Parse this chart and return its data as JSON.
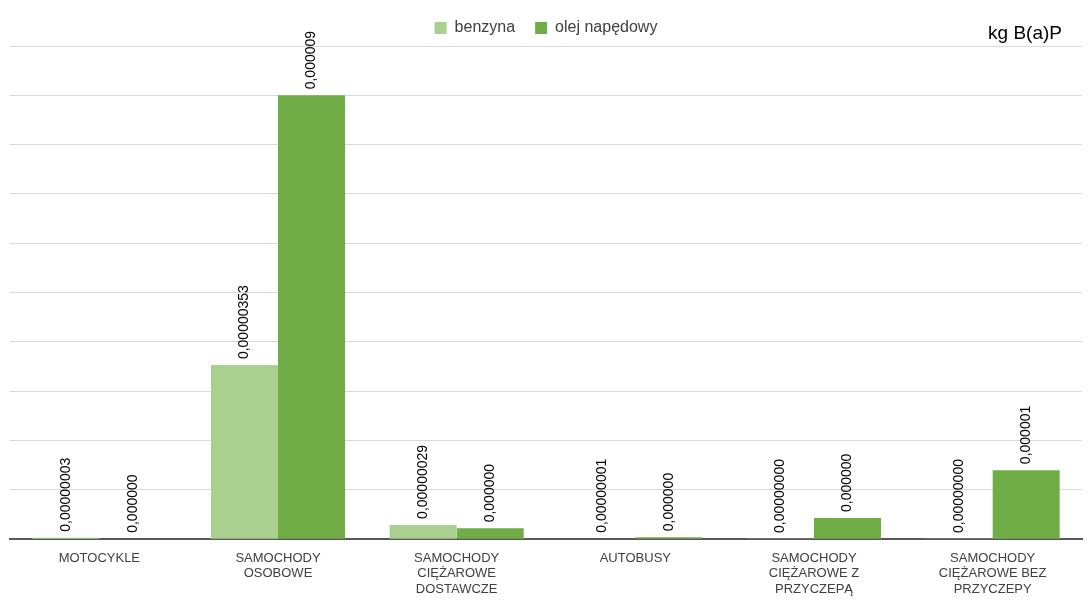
{
  "chart_data": {
    "type": "bar",
    "categories": [
      "MOTOCYKLE",
      "SAMOCHODY OSOBOWE",
      "SAMOCHODY CIĘŻAROWE DOSTAWCZE",
      "AUTOBUSY",
      "SAMOCHODY CIĘŻAROWE Z PRZYCZEPĄ",
      "SAMOCHODY CIĘŻAROWE BEZ PRZYCZEPY"
    ],
    "series": [
      {
        "name": "benzyna",
        "color": "#a9d08e",
        "values": [
          3e-08,
          3.53e-06,
          2.9e-07,
          1e-08,
          4e-09,
          4e-09
        ],
        "value_labels": [
          "0,00000003",
          "0,00000353",
          "0,00000029",
          "0,00000001",
          "0,00000000",
          "0,00000000"
        ]
      },
      {
        "name": "olej napędowy",
        "color": "#70ad47",
        "values": [
          8e-09,
          9e-06,
          2.2e-07,
          4e-08,
          4.3e-07,
          1.4e-06
        ],
        "value_labels": [
          "0,000000",
          "0,000009",
          "0,000000",
          "0,000000",
          "0,000000",
          "0,000001"
        ]
      }
    ],
    "ylim": [
      0,
      1e-05
    ],
    "yticks": [
      {
        "value": 0,
        "label": null
      },
      {
        "value": 1e-06,
        "label": null
      },
      {
        "value": 2e-06,
        "label": null
      },
      {
        "value": 3e-06,
        "label": null
      },
      {
        "value": 4e-06,
        "label": null
      },
      {
        "value": 5e-06,
        "label": null
      },
      {
        "value": 6e-06,
        "label": null
      },
      {
        "value": 7e-06,
        "label": null
      },
      {
        "value": 8e-06,
        "label": null
      },
      {
        "value": 9e-06,
        "label": null
      },
      {
        "value": 1e-05,
        "label": null
      }
    ],
    "tick_labels": "x",
    "annotations": [
      "kg B(a)P"
    ],
    "grid": "y",
    "legend": "top"
  }
}
